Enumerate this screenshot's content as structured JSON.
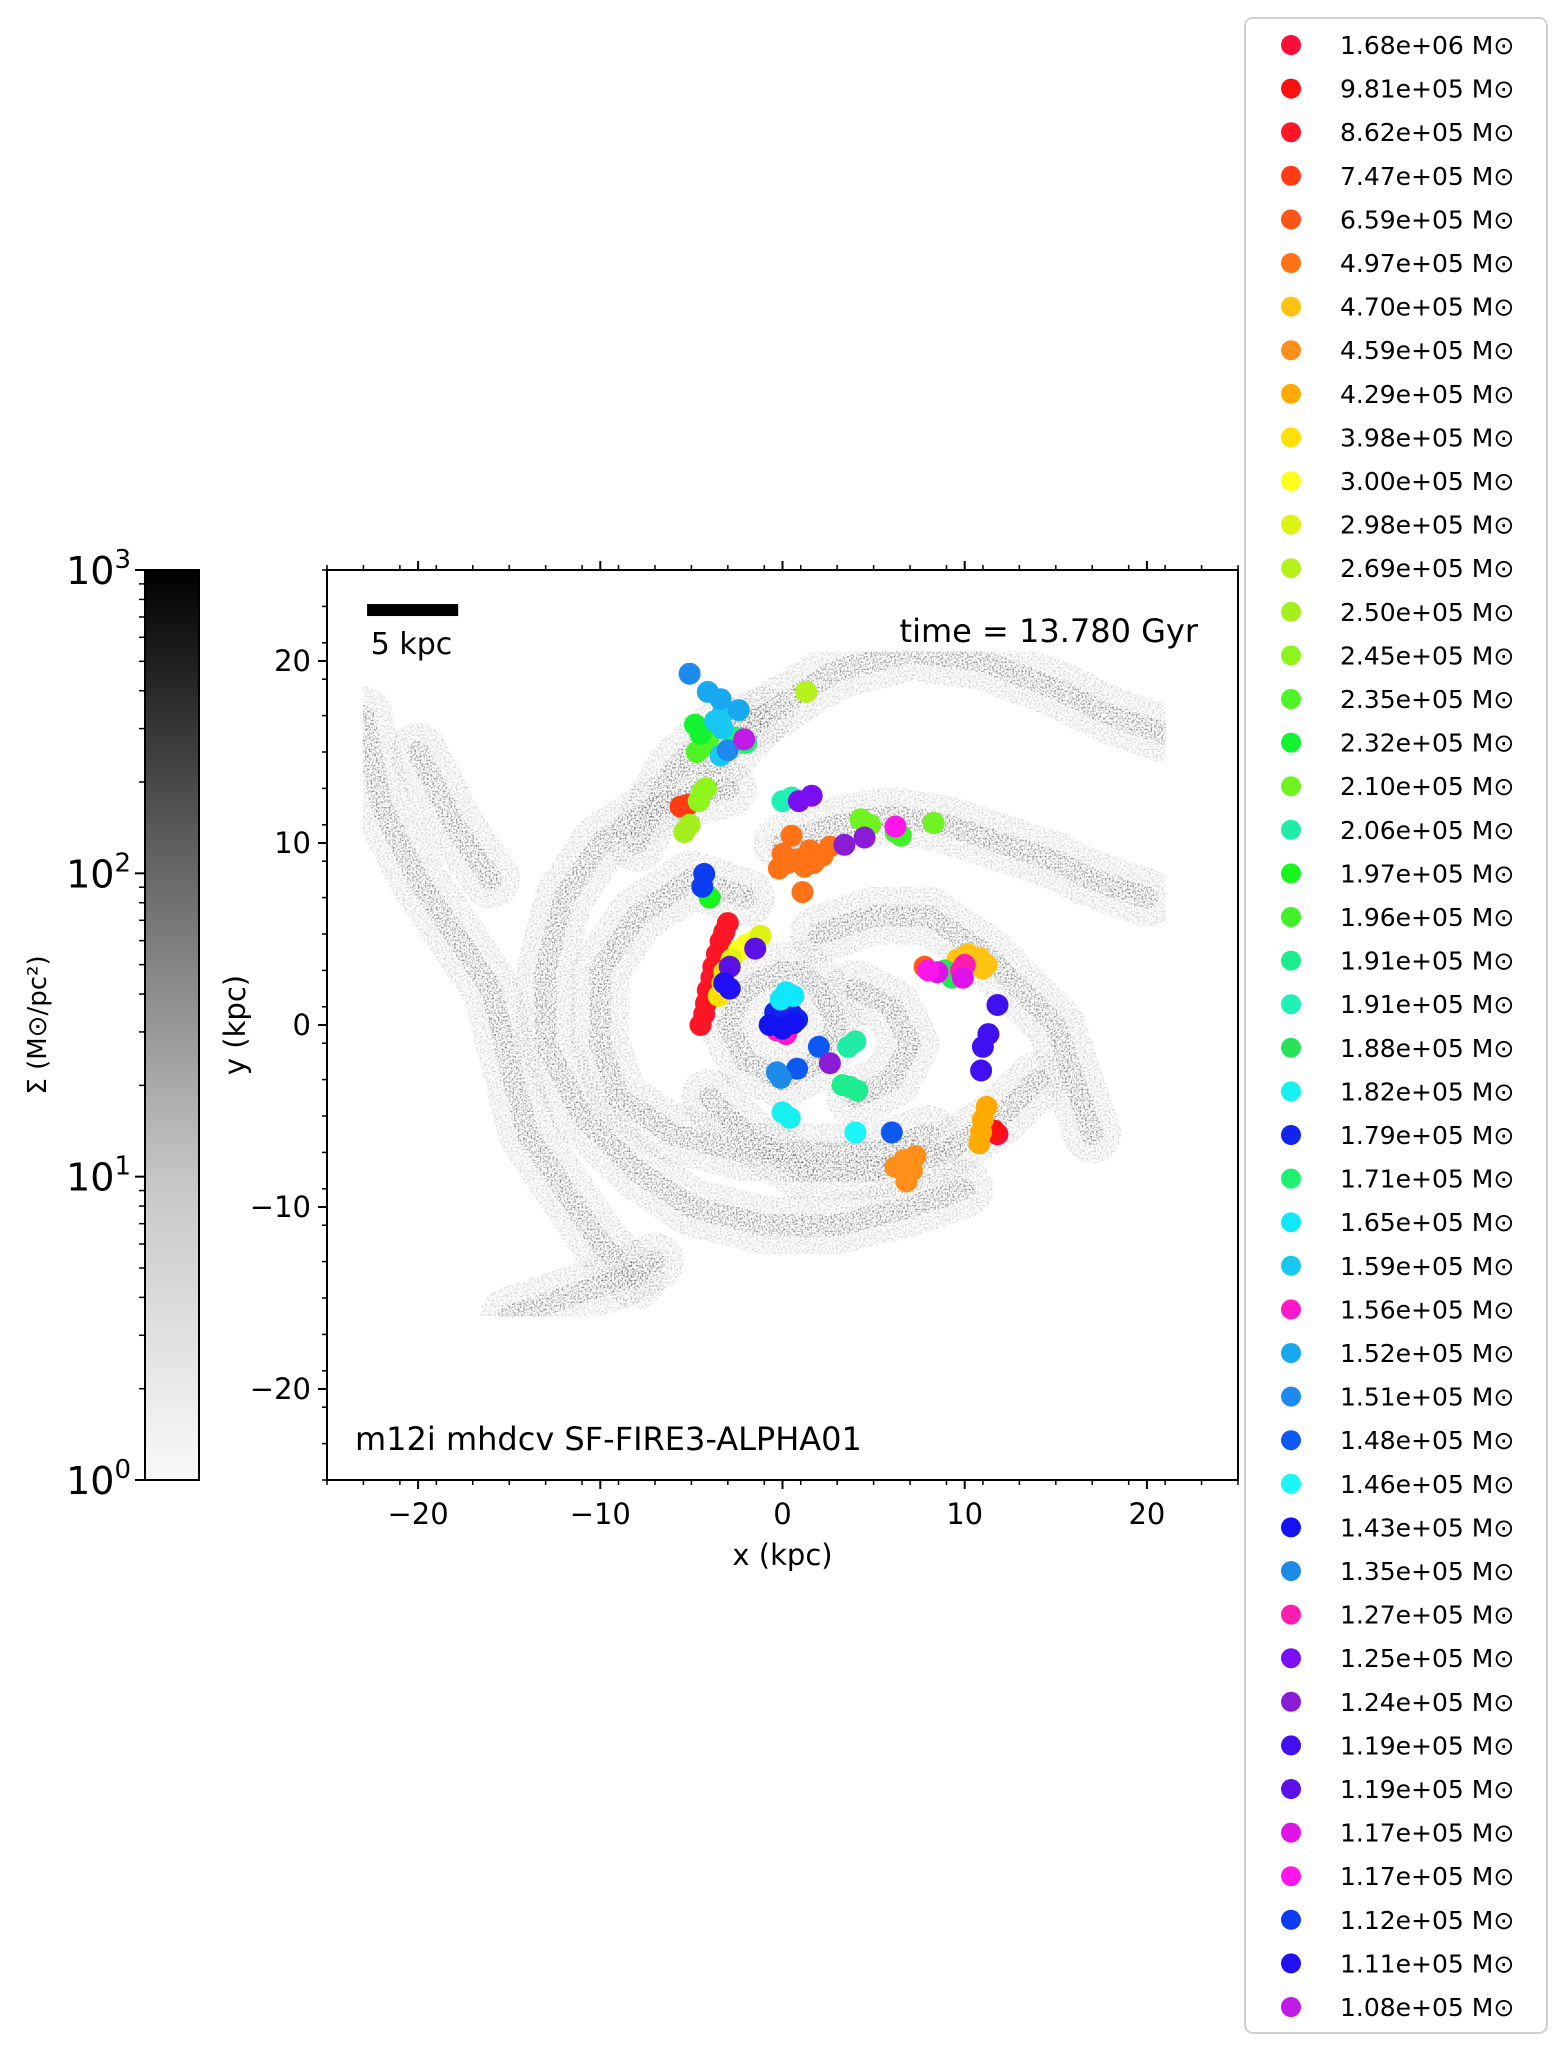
{
  "chart_data": {
    "type": "scatter",
    "annotations": {
      "time": "time = 13.780 Gyr",
      "sim": "m12i mhdcv SF-FIRE3-ALPHA01",
      "scalebar": "5 kpc"
    },
    "xlabel": "x (kpc)",
    "ylabel": "y (kpc)",
    "xlim": [
      -25,
      25
    ],
    "ylim": [
      -25,
      25
    ],
    "xticks": [
      -20,
      -10,
      0,
      10,
      20
    ],
    "yticks": [
      -20,
      -10,
      0,
      10,
      20
    ],
    "xticklabels": [
      "−20",
      "−10",
      "0",
      "10",
      "20"
    ],
    "yticklabels": [
      "−20",
      "−10",
      "0",
      "10",
      "20"
    ],
    "colorbar": {
      "label": "Σ (M⊙/pc²)",
      "scale": "log",
      "range": [
        1,
        1000
      ],
      "ticks": [
        {
          "value": 1,
          "base": "10",
          "exp": "0"
        },
        {
          "value": 10,
          "base": "10",
          "exp": "1"
        },
        {
          "value": 100,
          "base": "10",
          "exp": "2"
        },
        {
          "value": 1000,
          "base": "10",
          "exp": "3"
        }
      ]
    },
    "legend_placement": "outside right",
    "legend_unit": "M⊙",
    "series": [
      {
        "name": "1.68e+06",
        "color": "#ff0d3a",
        "points": [
          [
            11.8,
            -6.0
          ]
        ]
      },
      {
        "name": "9.81e+05",
        "color": "#ff1010",
        "points": [
          [
            11.6,
            -5.8
          ]
        ]
      },
      {
        "name": "8.62e+05",
        "color": "#ff1626",
        "points": [
          [
            -4.5,
            0.0
          ],
          [
            -4.3,
            0.6
          ],
          [
            -4.2,
            1.2
          ],
          [
            -4.1,
            1.9
          ],
          [
            -3.9,
            2.6
          ],
          [
            -3.8,
            3.2
          ],
          [
            -3.6,
            3.9
          ],
          [
            -3.4,
            4.6
          ],
          [
            -3.2,
            5.1
          ],
          [
            -3.0,
            5.6
          ]
        ]
      },
      {
        "name": "7.47e+05",
        "color": "#ff3c14",
        "points": [
          [
            -5.6,
            12.0
          ],
          [
            -5.2,
            12.1
          ]
        ]
      },
      {
        "name": "6.59e+05",
        "color": "#ff5518",
        "points": [
          [
            7.8,
            3.2
          ]
        ]
      },
      {
        "name": "4.97e+05",
        "color": "#ff7216",
        "points": [
          [
            -0.2,
            8.6
          ],
          [
            0.3,
            8.9
          ],
          [
            0.8,
            9.1
          ],
          [
            1.2,
            8.7
          ],
          [
            1.7,
            8.9
          ],
          [
            2.2,
            9.3
          ],
          [
            2.6,
            9.8
          ],
          [
            0.5,
            10.4
          ],
          [
            1.1,
            7.3
          ],
          [
            0.0,
            9.4
          ],
          [
            1.5,
            9.6
          ]
        ]
      },
      {
        "name": "4.70e+05",
        "color": "#ffc312",
        "points": [
          [
            9.6,
            3.6
          ],
          [
            10.2,
            3.9
          ],
          [
            10.8,
            3.7
          ],
          [
            11.2,
            3.3
          ],
          [
            11.0,
            3.1
          ]
        ]
      },
      {
        "name": "4.59e+05",
        "color": "#ff8f18",
        "points": [
          [
            6.2,
            -7.8
          ],
          [
            6.7,
            -7.4
          ],
          [
            7.3,
            -7.2
          ],
          [
            7.0,
            -7.9
          ],
          [
            6.8,
            -8.6
          ],
          [
            7.1,
            -8.0
          ]
        ]
      },
      {
        "name": "4.29e+05",
        "color": "#ffaa00",
        "points": [
          [
            11.2,
            -4.5
          ],
          [
            11.0,
            -5.2
          ],
          [
            10.9,
            -5.9
          ],
          [
            10.8,
            -6.5
          ]
        ]
      },
      {
        "name": "3.98e+05",
        "color": "#ffe000",
        "points": [
          [
            -3.3,
            2.3
          ],
          [
            -3.2,
            2.9
          ],
          [
            -3.5,
            1.6
          ]
        ]
      },
      {
        "name": "3.00e+05",
        "color": "#ffff1c",
        "points": [
          [
            -2.4,
            4.1
          ],
          [
            -2.0,
            4.4
          ],
          [
            -1.6,
            4.6
          ]
        ]
      },
      {
        "name": "2.98e+05",
        "color": "#ddf412",
        "points": [
          [
            -2.8,
            3.6
          ],
          [
            -1.2,
            4.9
          ]
        ]
      },
      {
        "name": "2.69e+05",
        "color": "#b6f21c",
        "points": [
          [
            1.3,
            18.3
          ]
        ]
      },
      {
        "name": "2.50e+05",
        "color": "#a4f01e",
        "points": [
          [
            -5.4,
            10.6
          ],
          [
            -5.1,
            11.0
          ]
        ]
      },
      {
        "name": "2.45e+05",
        "color": "#8df41c",
        "points": [
          [
            -4.6,
            12.3
          ],
          [
            -4.4,
            12.8
          ],
          [
            -4.2,
            13.0
          ]
        ]
      },
      {
        "name": "2.35e+05",
        "color": "#50f426",
        "points": [
          [
            -4.7,
            15.0
          ],
          [
            -4.4,
            15.3
          ],
          [
            -4.1,
            15.6
          ]
        ]
      },
      {
        "name": "2.32e+05",
        "color": "#12f430",
        "points": [
          [
            -4.8,
            16.5
          ],
          [
            -4.5,
            16.0
          ]
        ]
      },
      {
        "name": "2.10e+05",
        "color": "#70f220",
        "points": [
          [
            4.3,
            11.3
          ],
          [
            4.8,
            11.0
          ],
          [
            8.3,
            11.1
          ]
        ]
      },
      {
        "name": "2.06e+05",
        "color": "#20eca6",
        "points": [
          [
            4.0,
            -0.9
          ],
          [
            3.6,
            -1.2
          ]
        ]
      },
      {
        "name": "1.97e+05",
        "color": "#19f51e",
        "points": [
          [
            -4.0,
            7.0
          ]
        ]
      },
      {
        "name": "1.96e+05",
        "color": "#41f028",
        "points": [
          [
            6.5,
            10.4
          ],
          [
            6.2,
            10.6
          ]
        ]
      },
      {
        "name": "1.91e+05",
        "color": "#1ded8e",
        "points": [
          [
            3.7,
            -3.4
          ],
          [
            3.3,
            -3.3
          ],
          [
            4.1,
            -3.6
          ]
        ]
      },
      {
        "name": "1.91e+05",
        "color": "#1ff0b6",
        "points": [
          [
            0.0,
            12.3
          ],
          [
            0.5,
            12.5
          ]
        ]
      },
      {
        "name": "1.88e+05",
        "color": "#2ae25a",
        "points": [
          [
            8.9,
            3.0
          ],
          [
            9.3,
            2.6
          ]
        ]
      },
      {
        "name": "1.82e+05",
        "color": "#16f0f0",
        "points": [
          [
            0.4,
            -5.1
          ],
          [
            0.0,
            -4.8
          ]
        ]
      },
      {
        "name": "1.79e+05",
        "color": "#1224ec",
        "points": [
          [
            -0.4,
            0.7
          ],
          [
            0.0,
            0.9
          ],
          [
            0.5,
            0.6
          ],
          [
            0.8,
            0.3
          ]
        ]
      },
      {
        "name": "1.71e+05",
        "color": "#1ef070",
        "points": [
          [
            -2.6,
            15.8
          ],
          [
            -2.0,
            15.5
          ]
        ]
      },
      {
        "name": "1.65e+05",
        "color": "#10e8ff",
        "points": [
          [
            -0.1,
            1.4
          ],
          [
            0.2,
            1.8
          ],
          [
            0.6,
            1.6
          ]
        ]
      },
      {
        "name": "1.59e+05",
        "color": "#18c8f0",
        "points": [
          [
            -3.3,
            16.3
          ],
          [
            -3.7,
            16.7
          ],
          [
            -3.3,
            17.1
          ],
          [
            -3.4,
            14.8
          ]
        ]
      },
      {
        "name": "1.56e+05",
        "color": "#ff18c8",
        "points": [
          [
            -0.3,
            -0.3
          ],
          [
            0.2,
            -0.5
          ]
        ]
      },
      {
        "name": "1.52e+05",
        "color": "#18a8f0",
        "points": [
          [
            -4.1,
            18.3
          ],
          [
            -3.4,
            17.9
          ],
          [
            -2.4,
            17.3
          ]
        ]
      },
      {
        "name": "1.51e+05",
        "color": "#1e8af0",
        "points": [
          [
            -5.1,
            19.3
          ],
          [
            -3.0,
            15.1
          ]
        ]
      },
      {
        "name": "1.48e+05",
        "color": "#0e58f2",
        "points": [
          [
            6.0,
            -5.9
          ],
          [
            2.0,
            -1.2
          ],
          [
            0.8,
            -2.4
          ]
        ]
      },
      {
        "name": "1.46e+05",
        "color": "#1cf6f8",
        "points": [
          [
            4.0,
            -5.9
          ]
        ]
      },
      {
        "name": "1.43e+05",
        "color": "#1212f2",
        "points": [
          [
            -0.7,
            0.0
          ],
          [
            0.0,
            -0.2
          ],
          [
            0.6,
            0.1
          ]
        ]
      },
      {
        "name": "1.35e+05",
        "color": "#1c8ae6",
        "points": [
          [
            -0.1,
            -2.9
          ],
          [
            -0.3,
            -2.6
          ]
        ]
      },
      {
        "name": "1.27e+05",
        "color": "#ff1cb0",
        "points": [
          [
            10.0,
            3.3
          ],
          [
            9.8,
            3.0
          ]
        ]
      },
      {
        "name": "1.25e+05",
        "color": "#7a10f2",
        "points": [
          [
            0.9,
            12.3
          ],
          [
            1.6,
            12.6
          ]
        ]
      },
      {
        "name": "1.24e+05",
        "color": "#8a1cd6",
        "points": [
          [
            3.4,
            9.9
          ],
          [
            4.5,
            10.3
          ],
          [
            2.6,
            -2.1
          ]
        ]
      },
      {
        "name": "1.19e+05",
        "color": "#4010f0",
        "points": [
          [
            11.8,
            1.1
          ],
          [
            11.3,
            -0.5
          ],
          [
            11.0,
            -1.2
          ],
          [
            10.9,
            -2.5
          ]
        ]
      },
      {
        "name": "1.19e+05",
        "color": "#5a10e6",
        "points": [
          [
            -2.9,
            3.2
          ],
          [
            -1.5,
            4.2
          ]
        ]
      },
      {
        "name": "1.17e+05",
        "color": "#e012e8",
        "points": [
          [
            8.5,
            2.9
          ],
          [
            9.9,
            2.6
          ]
        ]
      },
      {
        "name": "1.17e+05",
        "color": "#ff16e8",
        "points": [
          [
            6.2,
            10.9
          ],
          [
            8.0,
            3.0
          ]
        ]
      },
      {
        "name": "1.12e+05",
        "color": "#0a3cf0",
        "points": [
          [
            -4.3,
            8.3
          ],
          [
            -4.4,
            7.6
          ]
        ]
      },
      {
        "name": "1.11e+05",
        "color": "#2210f4",
        "points": [
          [
            -3.2,
            2.3
          ],
          [
            -2.9,
            2.0
          ]
        ]
      },
      {
        "name": "1.08e+05",
        "color": "#c01ae6",
        "points": [
          [
            -2.1,
            15.7
          ]
        ]
      }
    ],
    "density_arms": [
      {
        "arm": "outer-north",
        "points": [
          [
            -4,
            14
          ],
          [
            -1,
            17
          ],
          [
            3,
            19.5
          ],
          [
            7,
            20.5
          ],
          [
            11,
            20
          ],
          [
            15,
            18.5
          ],
          [
            18,
            17
          ],
          [
            21,
            16
          ]
        ]
      },
      {
        "arm": "north-inner",
        "points": [
          [
            -8,
            10
          ],
          [
            -6,
            14
          ],
          [
            -4,
            16
          ],
          [
            -1,
            17
          ]
        ]
      },
      {
        "arm": "east-upper",
        "points": [
          [
            0,
            10
          ],
          [
            3,
            11
          ],
          [
            6,
            11.5
          ],
          [
            9,
            11
          ],
          [
            12,
            10
          ],
          [
            15,
            9
          ],
          [
            17,
            8
          ],
          [
            20,
            7
          ]
        ]
      },
      {
        "arm": "east-lower",
        "points": [
          [
            2,
            5
          ],
          [
            5,
            6
          ],
          [
            8,
            6
          ],
          [
            11,
            4
          ],
          [
            13,
            2
          ],
          [
            15,
            0
          ],
          [
            16,
            -3
          ],
          [
            17,
            -6
          ]
        ]
      },
      {
        "arm": "west-large",
        "points": [
          [
            -3,
            13
          ],
          [
            -7,
            12
          ],
          [
            -10,
            10
          ],
          [
            -12,
            7
          ],
          [
            -13,
            3
          ],
          [
            -13,
            -1
          ],
          [
            -11,
            -5
          ],
          [
            -8,
            -8
          ],
          [
            -5,
            -10
          ],
          [
            -1,
            -11
          ],
          [
            3,
            -11
          ],
          [
            7,
            -10
          ],
          [
            10,
            -9
          ]
        ]
      },
      {
        "arm": "west-mid",
        "points": [
          [
            -2,
            7
          ],
          [
            -5,
            8
          ],
          [
            -8,
            6
          ],
          [
            -10,
            3
          ],
          [
            -10,
            -1
          ],
          [
            -9,
            -4
          ],
          [
            -6,
            -6
          ],
          [
            -2,
            -7
          ],
          [
            2,
            -7
          ],
          [
            5,
            -7
          ],
          [
            8,
            -6
          ]
        ]
      },
      {
        "arm": "center-spiral",
        "points": [
          [
            0,
            3
          ],
          [
            -2,
            2
          ],
          [
            -3,
            0
          ],
          [
            -2,
            -2
          ],
          [
            0,
            -3
          ],
          [
            2,
            -2
          ],
          [
            3,
            0
          ],
          [
            2,
            2
          ],
          [
            1,
            3
          ]
        ]
      },
      {
        "arm": "south",
        "points": [
          [
            -4,
            -4
          ],
          [
            -2,
            -6
          ],
          [
            1,
            -8
          ],
          [
            5,
            -8
          ],
          [
            9,
            -7
          ],
          [
            12,
            -5
          ],
          [
            14,
            -3
          ]
        ]
      },
      {
        "arm": "inner-loop",
        "points": [
          [
            4,
            2
          ],
          [
            6,
            1
          ],
          [
            7,
            -1
          ],
          [
            6,
            -3
          ],
          [
            4,
            -4
          ]
        ]
      },
      {
        "arm": "far-west",
        "points": [
          [
            -23,
            17
          ],
          [
            -22,
            12
          ],
          [
            -20,
            8
          ],
          [
            -18,
            5
          ],
          [
            -16,
            2
          ],
          [
            -15,
            -2
          ],
          [
            -14,
            -6
          ],
          [
            -12,
            -9
          ],
          [
            -10,
            -12
          ],
          [
            -8,
            -14
          ]
        ]
      },
      {
        "arm": "far-west-2",
        "points": [
          [
            -20,
            15
          ],
          [
            -18,
            11
          ],
          [
            -16,
            8
          ]
        ]
      },
      {
        "arm": "far-south",
        "points": [
          [
            -15,
            -16
          ],
          [
            -12,
            -15
          ],
          [
            -9,
            -14
          ],
          [
            -7,
            -13
          ]
        ]
      }
    ]
  }
}
